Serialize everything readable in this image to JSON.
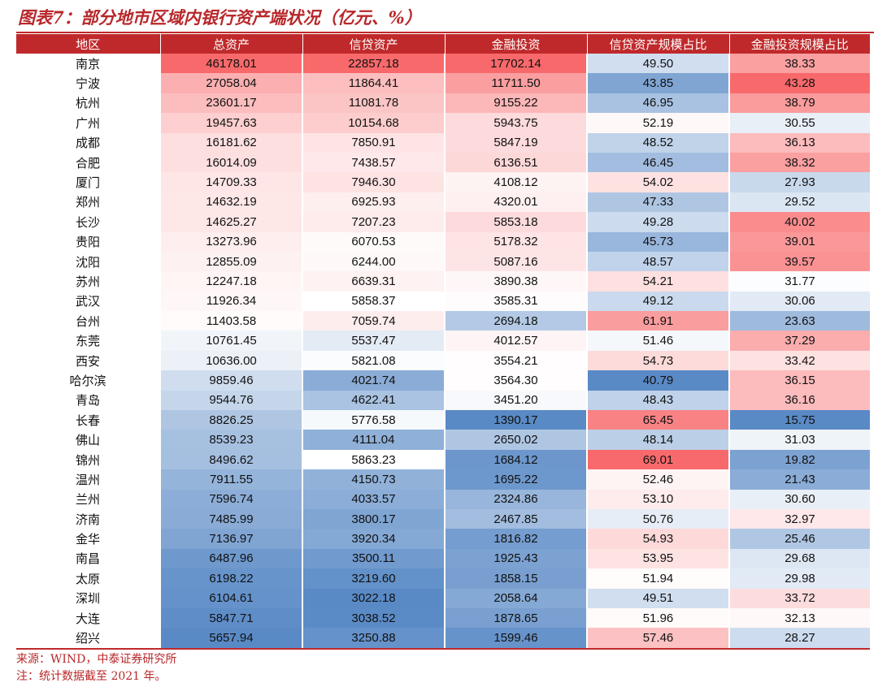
{
  "title": "图表7：部分地市区域内银行资产端状况（亿元、%）",
  "source": "来源：WIND，中泰证券研究所",
  "note": "注：统计数据截至 2021 年。",
  "colors": {
    "high": "#f8696b",
    "mid": "#ffffff",
    "low": "#5a8ac6",
    "header": "#c0292b"
  },
  "chart_data": {
    "type": "table",
    "title": "图表7：部分地市区域内银行资产端状况（亿元、%）",
    "columns": [
      "地区",
      "总资产",
      "信贷资产",
      "金融投资",
      "信贷资产规模占比",
      "金融投资规模占比"
    ],
    "rows": [
      [
        "南京",
        "46178.01",
        "22857.18",
        "17702.14",
        "49.50",
        "38.33"
      ],
      [
        "宁波",
        "27058.04",
        "11864.41",
        "11711.50",
        "43.85",
        "43.28"
      ],
      [
        "杭州",
        "23601.17",
        "11081.78",
        "9155.22",
        "46.95",
        "38.79"
      ],
      [
        "广州",
        "19457.63",
        "10154.68",
        "5943.75",
        "52.19",
        "30.55"
      ],
      [
        "成都",
        "16181.62",
        "7850.91",
        "5847.19",
        "48.52",
        "36.13"
      ],
      [
        "合肥",
        "16014.09",
        "7438.57",
        "6136.51",
        "46.45",
        "38.32"
      ],
      [
        "厦门",
        "14709.33",
        "7946.30",
        "4108.12",
        "54.02",
        "27.93"
      ],
      [
        "郑州",
        "14632.19",
        "6925.93",
        "4320.01",
        "47.33",
        "29.52"
      ],
      [
        "长沙",
        "14625.27",
        "7207.23",
        "5853.18",
        "49.28",
        "40.02"
      ],
      [
        "贵阳",
        "13273.96",
        "6070.53",
        "5178.32",
        "45.73",
        "39.01"
      ],
      [
        "沈阳",
        "12855.09",
        "6244.00",
        "5087.16",
        "48.57",
        "39.57"
      ],
      [
        "苏州",
        "12247.18",
        "6639.31",
        "3890.38",
        "54.21",
        "31.77"
      ],
      [
        "武汉",
        "11926.34",
        "5858.37",
        "3585.31",
        "49.12",
        "30.06"
      ],
      [
        "台州",
        "11403.58",
        "7059.74",
        "2694.18",
        "61.91",
        "23.63"
      ],
      [
        "东莞",
        "10761.45",
        "5537.47",
        "4012.57",
        "51.46",
        "37.29"
      ],
      [
        "西安",
        "10636.00",
        "5821.08",
        "3554.21",
        "54.73",
        "33.42"
      ],
      [
        "哈尔滨",
        "9859.46",
        "4021.74",
        "3564.30",
        "40.79",
        "36.15"
      ],
      [
        "青岛",
        "9544.76",
        "4622.41",
        "3451.20",
        "48.43",
        "36.16"
      ],
      [
        "长春",
        "8826.25",
        "5776.58",
        "1390.17",
        "65.45",
        "15.75"
      ],
      [
        "佛山",
        "8539.23",
        "4111.04",
        "2650.02",
        "48.14",
        "31.03"
      ],
      [
        "锦州",
        "8496.62",
        "5863.23",
        "1684.12",
        "69.01",
        "19.82"
      ],
      [
        "温州",
        "7911.55",
        "4150.73",
        "1695.22",
        "52.46",
        "21.43"
      ],
      [
        "兰州",
        "7596.74",
        "4033.57",
        "2324.86",
        "53.10",
        "30.60"
      ],
      [
        "济南",
        "7485.99",
        "3800.17",
        "2467.85",
        "50.76",
        "32.97"
      ],
      [
        "金华",
        "7136.97",
        "3920.34",
        "1816.82",
        "54.93",
        "25.46"
      ],
      [
        "南昌",
        "6487.96",
        "3500.11",
        "1925.43",
        "53.95",
        "29.68"
      ],
      [
        "太原",
        "6198.22",
        "3219.60",
        "1858.15",
        "51.94",
        "29.98"
      ],
      [
        "深圳",
        "6104.61",
        "3022.18",
        "2058.64",
        "49.51",
        "33.72"
      ],
      [
        "大连",
        "5847.71",
        "3038.52",
        "1878.65",
        "51.96",
        "32.13"
      ],
      [
        "绍兴",
        "5657.94",
        "3250.88",
        "1599.46",
        "57.46",
        "28.27"
      ]
    ],
    "color_scale_midpoints": [
      11000,
      5850,
      3500,
      51.8,
      31.9
    ]
  }
}
